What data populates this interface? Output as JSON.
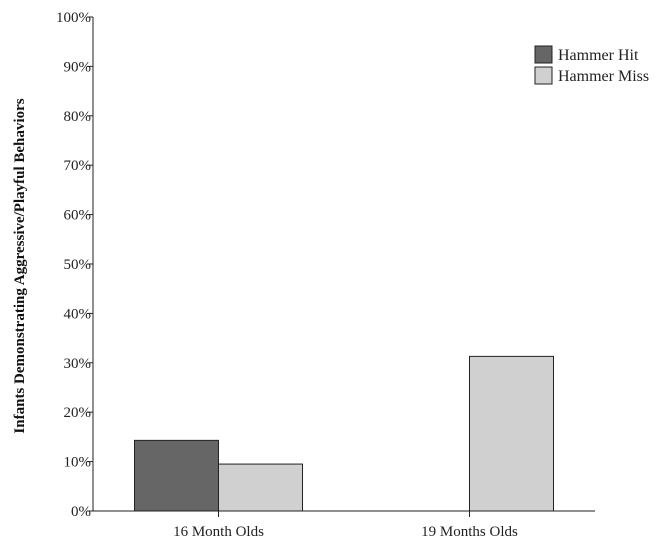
{
  "chart_data": {
    "type": "bar",
    "categories": [
      "16 Month Olds",
      "19 Months Olds"
    ],
    "series": [
      {
        "name": "Hammer Hit",
        "values": [
          14.3,
          0
        ],
        "color": "#666666"
      },
      {
        "name": "Hammer Miss",
        "values": [
          9.5,
          31.3
        ],
        "color": "#d0d0d0"
      }
    ],
    "xlabel": "",
    "ylabel": "Infants Demonstrating Aggressive/Playful Behaviors",
    "ylim": [
      0,
      100
    ],
    "yticks": [
      0,
      10,
      20,
      30,
      40,
      50,
      60,
      70,
      80,
      90,
      100
    ],
    "ytick_labels": [
      "0%",
      "10%",
      "20%",
      "30%",
      "40%",
      "50%",
      "60%",
      "70%",
      "80%",
      "90%",
      "100%"
    ],
    "grid": false,
    "legend_position": "top-right"
  }
}
